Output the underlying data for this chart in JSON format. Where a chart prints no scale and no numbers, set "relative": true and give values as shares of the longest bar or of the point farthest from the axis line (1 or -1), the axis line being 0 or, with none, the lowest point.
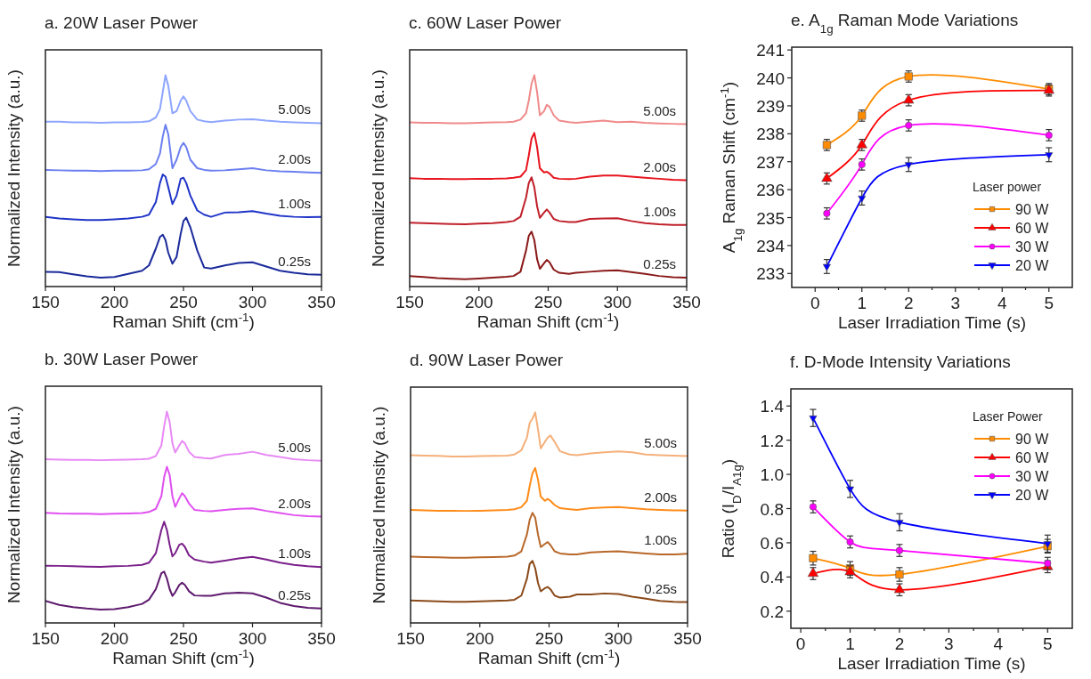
{
  "chart_data": [
    {
      "type": "line",
      "title": "a. 20W Laser Power",
      "xlabel": "Raman Shift (cm$^{-1}$)",
      "ylabel": "Normalized Intensity (a.u.)",
      "relative": true,
      "tick_labels": "x",
      "x": [
        150,
        160,
        170,
        180,
        190,
        200,
        210,
        220,
        225,
        230,
        233,
        235,
        237,
        239,
        242,
        245,
        248,
        250,
        252,
        255,
        260,
        265,
        270,
        280,
        290,
        300,
        310,
        320,
        330,
        340,
        350
      ],
      "xlim": [
        150,
        350
      ],
      "xticks": [
        150,
        200,
        250,
        300,
        350
      ],
      "series": [
        {
          "name": "5.00s",
          "color": "#8ea6ff",
          "values": [
            0.78,
            0.78,
            0.777,
            0.777,
            0.775,
            0.777,
            0.777,
            0.779,
            0.782,
            0.8,
            0.84,
            0.92,
            1.0,
            0.95,
            0.82,
            0.83,
            0.88,
            0.9,
            0.88,
            0.83,
            0.79,
            0.782,
            0.778,
            0.785,
            0.79,
            0.792,
            0.785,
            0.78,
            0.777,
            0.775,
            0.773
          ]
        },
        {
          "name": "2.00s",
          "color": "#6b7ff0",
          "values": [
            0.552,
            0.55,
            0.548,
            0.548,
            0.546,
            0.548,
            0.548,
            0.55,
            0.555,
            0.58,
            0.63,
            0.71,
            0.765,
            0.72,
            0.56,
            0.6,
            0.66,
            0.68,
            0.66,
            0.6,
            0.56,
            0.552,
            0.548,
            0.55,
            0.555,
            0.56,
            0.55,
            0.545,
            0.543,
            0.54,
            0.538
          ]
        },
        {
          "name": "1.00s",
          "color": "#2035c8",
          "values": [
            0.33,
            0.322,
            0.318,
            0.315,
            0.315,
            0.318,
            0.322,
            0.33,
            0.34,
            0.4,
            0.49,
            0.53,
            0.52,
            0.47,
            0.39,
            0.43,
            0.51,
            0.515,
            0.49,
            0.43,
            0.36,
            0.34,
            0.33,
            0.35,
            0.352,
            0.357,
            0.345,
            0.335,
            0.33,
            0.328,
            0.329
          ]
        },
        {
          "name": "0.25s",
          "color": "#1a2a9a",
          "values": [
            0.07,
            0.068,
            0.058,
            0.048,
            0.042,
            0.045,
            0.06,
            0.075,
            0.1,
            0.18,
            0.235,
            0.245,
            0.22,
            0.16,
            0.108,
            0.14,
            0.25,
            0.31,
            0.326,
            0.28,
            0.17,
            0.09,
            0.085,
            0.1,
            0.112,
            0.115,
            0.095,
            0.075,
            0.065,
            0.058,
            0.056
          ]
        }
      ]
    },
    {
      "type": "line",
      "title": "c. 60W Laser Power",
      "xlabel": "Raman Shift (cm$^{-1}$)",
      "ylabel": "Normalized Intensity (a.u.)",
      "relative": true,
      "tick_labels": "x",
      "x": [
        150,
        160,
        170,
        180,
        190,
        200,
        210,
        220,
        225,
        230,
        234,
        236,
        238,
        240,
        242,
        244,
        247,
        249,
        251,
        254,
        258,
        265,
        270,
        280,
        290,
        300,
        310,
        320,
        330,
        340,
        350
      ],
      "xlim": [
        150,
        350
      ],
      "xticks": [
        150,
        200,
        250,
        300,
        350
      ],
      "series": [
        {
          "name": "5.00s",
          "color": "#f08a8a",
          "values": [
            0.777,
            0.775,
            0.775,
            0.773,
            0.773,
            0.775,
            0.777,
            0.778,
            0.78,
            0.79,
            0.82,
            0.88,
            0.96,
            1.0,
            0.92,
            0.81,
            0.83,
            0.86,
            0.85,
            0.81,
            0.785,
            0.778,
            0.775,
            0.78,
            0.785,
            0.778,
            0.78,
            0.775,
            0.772,
            0.77,
            0.768
          ]
        },
        {
          "name": "2.00s",
          "color": "#e8141e",
          "values": [
            0.513,
            0.51,
            0.51,
            0.508,
            0.508,
            0.51,
            0.51,
            0.512,
            0.515,
            0.52,
            0.55,
            0.62,
            0.7,
            0.727,
            0.66,
            0.56,
            0.54,
            0.543,
            0.535,
            0.515,
            0.51,
            0.508,
            0.51,
            0.52,
            0.525,
            0.525,
            0.52,
            0.515,
            0.51,
            0.505,
            0.503
          ]
        },
        {
          "name": "1.00s",
          "color": "#c0202a",
          "values": [
            0.302,
            0.3,
            0.298,
            0.296,
            0.295,
            0.298,
            0.3,
            0.305,
            0.31,
            0.33,
            0.42,
            0.49,
            0.517,
            0.47,
            0.38,
            0.325,
            0.35,
            0.365,
            0.35,
            0.32,
            0.31,
            0.305,
            0.305,
            0.32,
            0.322,
            0.323,
            0.31,
            0.3,
            0.295,
            0.292,
            0.292
          ]
        },
        {
          "name": "0.25s",
          "color": "#8b1a1a",
          "values": [
            0.049,
            0.045,
            0.04,
            0.037,
            0.035,
            0.038,
            0.042,
            0.046,
            0.05,
            0.07,
            0.17,
            0.24,
            0.26,
            0.22,
            0.13,
            0.084,
            0.11,
            0.126,
            0.115,
            0.08,
            0.065,
            0.06,
            0.065,
            0.07,
            0.075,
            0.077,
            0.068,
            0.06,
            0.05,
            0.044,
            0.042
          ]
        }
      ]
    },
    {
      "type": "line",
      "title": "e. A$_{1g}$ Raman Mode Variations",
      "xlabel": "Laser Irradiation Time (s)",
      "ylabel": "A$_{1g}$ Raman Shift (cm$^{-1}$)",
      "legend": "bottom right",
      "legend_title": "Laser power",
      "x": [
        0.25,
        1,
        2,
        5
      ],
      "xlim": [
        -0.5,
        5.5
      ],
      "xticks": [
        0,
        {
          "value": 0.5,
          "label": null
        },
        1,
        {
          "value": 1.5,
          "label": null
        },
        2,
        {
          "value": 2.5,
          "label": null
        },
        3,
        {
          "value": 3.5,
          "label": null
        },
        4,
        {
          "value": 4.5,
          "label": null
        },
        5
      ],
      "ylim": [
        232.5,
        241.1
      ],
      "yticks": [
        233,
        234,
        235,
        236,
        237,
        238,
        239,
        240,
        241
      ],
      "series": [
        {
          "name": "90 W",
          "color": "#ff8c00",
          "marker": "square",
          "values": [
            237.6,
            238.65,
            240.05,
            239.6
          ],
          "errors": [
            0.2,
            0.2,
            0.2,
            0.2
          ]
        },
        {
          "name": "60 W",
          "color": "#ff0000",
          "marker": "triangle",
          "values": [
            236.4,
            237.6,
            239.2,
            239.55
          ],
          "errors": [
            0.2,
            0.2,
            0.2,
            0.2
          ]
        },
        {
          "name": "30 W",
          "color": "#ff00ff",
          "marker": "circle",
          "values": [
            235.15,
            236.9,
            238.3,
            237.95
          ],
          "errors": [
            0.2,
            0.2,
            0.2,
            0.2
          ]
        },
        {
          "name": "20 W",
          "color": "#0000ff",
          "marker": "triangle-down",
          "values": [
            233.25,
            235.7,
            236.9,
            237.25
          ],
          "errors": [
            0.25,
            0.25,
            0.25,
            0.25
          ]
        }
      ]
    },
    {
      "type": "line",
      "title": "b. 30W Laser Power",
      "xlabel": "Raman Shift (cm$^{-1}$)",
      "ylabel": "Normalized Intensity (a.u.)",
      "relative": true,
      "tick_labels": "x",
      "x": [
        150,
        160,
        170,
        180,
        190,
        200,
        210,
        220,
        225,
        230,
        234,
        236,
        238,
        240,
        242,
        244,
        247,
        249,
        251,
        254,
        258,
        265,
        270,
        280,
        290,
        300,
        310,
        320,
        330,
        340,
        350
      ],
      "xlim": [
        150,
        350
      ],
      "xticks": [
        150,
        200,
        250,
        300,
        350
      ],
      "series": [
        {
          "name": "5.00s",
          "color": "#e88af5",
          "values": [
            0.775,
            0.773,
            0.772,
            0.772,
            0.77,
            0.772,
            0.773,
            0.775,
            0.777,
            0.79,
            0.84,
            0.93,
            1.0,
            0.95,
            0.85,
            0.806,
            0.84,
            0.861,
            0.85,
            0.81,
            0.785,
            0.78,
            0.778,
            0.795,
            0.8,
            0.81,
            0.795,
            0.785,
            0.775,
            0.77,
            0.767
          ]
        },
        {
          "name": "2.00s",
          "color": "#e050f0",
          "values": [
            0.521,
            0.518,
            0.517,
            0.517,
            0.515,
            0.517,
            0.518,
            0.52,
            0.525,
            0.54,
            0.6,
            0.69,
            0.739,
            0.7,
            0.6,
            0.549,
            0.59,
            0.614,
            0.6,
            0.565,
            0.535,
            0.53,
            0.528,
            0.535,
            0.54,
            0.542,
            0.53,
            0.52,
            0.51,
            0.505,
            0.503
          ]
        },
        {
          "name": "1.00s",
          "color": "#7a1f8a",
          "values": [
            0.271,
            0.27,
            0.268,
            0.266,
            0.265,
            0.268,
            0.27,
            0.275,
            0.285,
            0.33,
            0.44,
            0.479,
            0.44,
            0.37,
            0.315,
            0.33,
            0.37,
            0.375,
            0.36,
            0.32,
            0.3,
            0.29,
            0.285,
            0.295,
            0.305,
            0.313,
            0.3,
            0.285,
            0.275,
            0.268,
            0.264
          ]
        },
        {
          "name": "0.25s",
          "color": "#5e1a6e",
          "values": [
            0.104,
            0.085,
            0.075,
            0.068,
            0.063,
            0.065,
            0.075,
            0.09,
            0.11,
            0.16,
            0.235,
            0.243,
            0.21,
            0.16,
            0.128,
            0.145,
            0.18,
            0.19,
            0.18,
            0.15,
            0.13,
            0.128,
            0.128,
            0.14,
            0.143,
            0.14,
            0.12,
            0.095,
            0.08,
            0.072,
            0.068
          ]
        }
      ]
    },
    {
      "type": "line",
      "title": "d. 90W Laser Power",
      "xlabel": "Raman Shift (cm$^{-1}$)",
      "ylabel": "Normalized Intensity (a.u.)",
      "relative": true,
      "tick_labels": "x",
      "x": [
        150,
        160,
        170,
        180,
        190,
        200,
        210,
        220,
        225,
        230,
        234,
        236,
        238,
        240,
        242,
        244,
        247,
        249,
        251,
        254,
        258,
        265,
        270,
        280,
        290,
        300,
        310,
        320,
        330,
        340,
        350
      ],
      "xlim": [
        150,
        350
      ],
      "xticks": [
        150,
        200,
        250,
        300,
        350
      ],
      "series": [
        {
          "name": "5.00s",
          "color": "#f5b07a",
          "values": [
            0.797,
            0.795,
            0.793,
            0.79,
            0.79,
            0.792,
            0.793,
            0.795,
            0.8,
            0.82,
            0.88,
            0.95,
            0.97,
            1.0,
            0.92,
            0.829,
            0.86,
            0.88,
            0.89,
            0.86,
            0.815,
            0.8,
            0.797,
            0.805,
            0.81,
            0.815,
            0.81,
            0.8,
            0.797,
            0.795,
            0.792
          ]
        },
        {
          "name": "2.00s",
          "color": "#ff8c1a",
          "values": [
            0.537,
            0.535,
            0.533,
            0.533,
            0.532,
            0.533,
            0.535,
            0.537,
            0.54,
            0.55,
            0.58,
            0.65,
            0.71,
            0.736,
            0.68,
            0.6,
            0.58,
            0.589,
            0.58,
            0.56,
            0.545,
            0.54,
            0.537,
            0.545,
            0.548,
            0.55,
            0.545,
            0.54,
            0.537,
            0.535,
            0.534
          ]
        },
        {
          "name": "1.00s",
          "color": "#b8682a",
          "values": [
            0.315,
            0.313,
            0.312,
            0.31,
            0.31,
            0.312,
            0.313,
            0.315,
            0.32,
            0.34,
            0.42,
            0.49,
            0.523,
            0.5,
            0.42,
            0.36,
            0.375,
            0.384,
            0.37,
            0.34,
            0.33,
            0.325,
            0.325,
            0.335,
            0.338,
            0.34,
            0.335,
            0.33,
            0.325,
            0.325,
            0.329
          ]
        },
        {
          "name": "0.25s",
          "color": "#8b4a1a",
          "values": [
            0.107,
            0.105,
            0.103,
            0.1,
            0.1,
            0.102,
            0.105,
            0.107,
            0.11,
            0.13,
            0.21,
            0.28,
            0.295,
            0.26,
            0.19,
            0.15,
            0.165,
            0.171,
            0.16,
            0.13,
            0.12,
            0.125,
            0.135,
            0.135,
            0.14,
            0.137,
            0.125,
            0.115,
            0.105,
            0.1,
            0.099
          ]
        }
      ]
    },
    {
      "type": "line",
      "title": "f. D-Mode Intensity Variations",
      "xlabel": "Laser Irradiation Time (s)",
      "ylabel": "Ratio (I$_{D}$/I$_{A1g}$)",
      "legend": "top right",
      "legend_title": "Laser Power",
      "x": [
        0.25,
        1,
        2,
        5
      ],
      "xlim": [
        -0.2,
        5.5
      ],
      "xticks": [
        0,
        {
          "value": 0.5,
          "label": null
        },
        1,
        {
          "value": 1.5,
          "label": null
        },
        2,
        {
          "value": 2.5,
          "label": null
        },
        3,
        {
          "value": 3.5,
          "label": null
        },
        4,
        {
          "value": 4.5,
          "label": null
        },
        5
      ],
      "ylim": [
        0.1,
        1.5
      ],
      "yticks": [
        0.2,
        0.4,
        0.6,
        0.8,
        {
          "value": 1,
          "label": "1.0"
        },
        1.2,
        1.4
      ],
      "series": [
        {
          "name": "90 W",
          "color": "#ff8c00",
          "marker": "square",
          "values": [
            0.51,
            0.45,
            0.415,
            0.58
          ],
          "errors": [
            0.04,
            0.04,
            0.04,
            0.04
          ]
        },
        {
          "name": "60 W",
          "color": "#ff0000",
          "marker": "triangle",
          "values": [
            0.42,
            0.43,
            0.325,
            0.46
          ],
          "errors": [
            0.035,
            0.035,
            0.035,
            0.035
          ]
        },
        {
          "name": "30 W",
          "color": "#ff00ff",
          "marker": "circle",
          "values": [
            0.81,
            0.605,
            0.555,
            0.48
          ],
          "errors": [
            0.035,
            0.035,
            0.035,
            0.035
          ]
        },
        {
          "name": "20 W",
          "color": "#0000ff",
          "marker": "triangle-down",
          "values": [
            1.33,
            0.915,
            0.72,
            0.595
          ],
          "errors": [
            0.05,
            0.05,
            0.05,
            0.05
          ]
        }
      ]
    }
  ]
}
